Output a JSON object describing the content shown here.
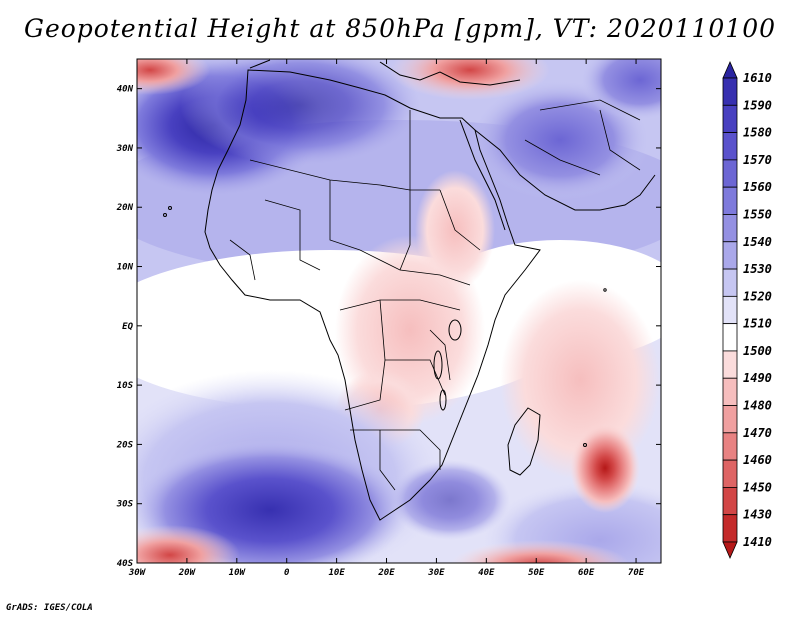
{
  "title": "Geopotential Height at 850hPa [gpm], VT: 2020110100",
  "credit": "GrADS: IGES/COLA",
  "axes": {
    "lat_labels": [
      "40N",
      "30N",
      "20N",
      "10N",
      "EQ",
      "10S",
      "20S",
      "30S",
      "40S"
    ],
    "lat_values": [
      40,
      30,
      20,
      10,
      0,
      -10,
      -20,
      -30,
      -40
    ],
    "lon_labels": [
      "30W",
      "20W",
      "10W",
      "0",
      "10E",
      "20E",
      "30E",
      "40E",
      "50E",
      "60E",
      "70E"
    ],
    "lon_values": [
      -30,
      -20,
      -10,
      0,
      10,
      20,
      30,
      40,
      50,
      60,
      70
    ],
    "lat_range": [
      -40,
      45
    ],
    "lon_range": [
      -30,
      75
    ]
  },
  "colorbar": {
    "levels": [
      "1610",
      "1590",
      "1580",
      "1570",
      "1560",
      "1550",
      "1540",
      "1530",
      "1520",
      "1510",
      "1500",
      "1490",
      "1480",
      "1470",
      "1460",
      "1450",
      "1430",
      "1410"
    ],
    "colors": [
      "#2a24a0",
      "#3730b0",
      "#4840c0",
      "#5a52cc",
      "#6c66d4",
      "#7e7adc",
      "#9490e2",
      "#aaa8ea",
      "#c6c6f2",
      "#e2e2f8",
      "#ffffff",
      "#fbdcdc",
      "#f6bebe",
      "#f0a0a0",
      "#e88282",
      "#de6464",
      "#d24646",
      "#c42a2a",
      "#b51818"
    ]
  },
  "map_features": {
    "high_centers": [
      {
        "label": "north-atlantic-high",
        "lon": -17,
        "lat": 33
      },
      {
        "label": "south-atlantic-high",
        "lon": 3,
        "lat": -29
      },
      {
        "label": "arabia-high",
        "lon": 52,
        "lat": 28
      }
    ],
    "low_centers": [
      {
        "label": "mascarene-low",
        "lon": 64,
        "lat": -25
      },
      {
        "label": "mediterranean-low",
        "lon": 33,
        "lat": 43
      },
      {
        "label": "southern-atlantic-low",
        "lon": -27,
        "lat": -38
      },
      {
        "label": "southern-indian-low",
        "lon": 52,
        "lat": -39
      }
    ]
  }
}
